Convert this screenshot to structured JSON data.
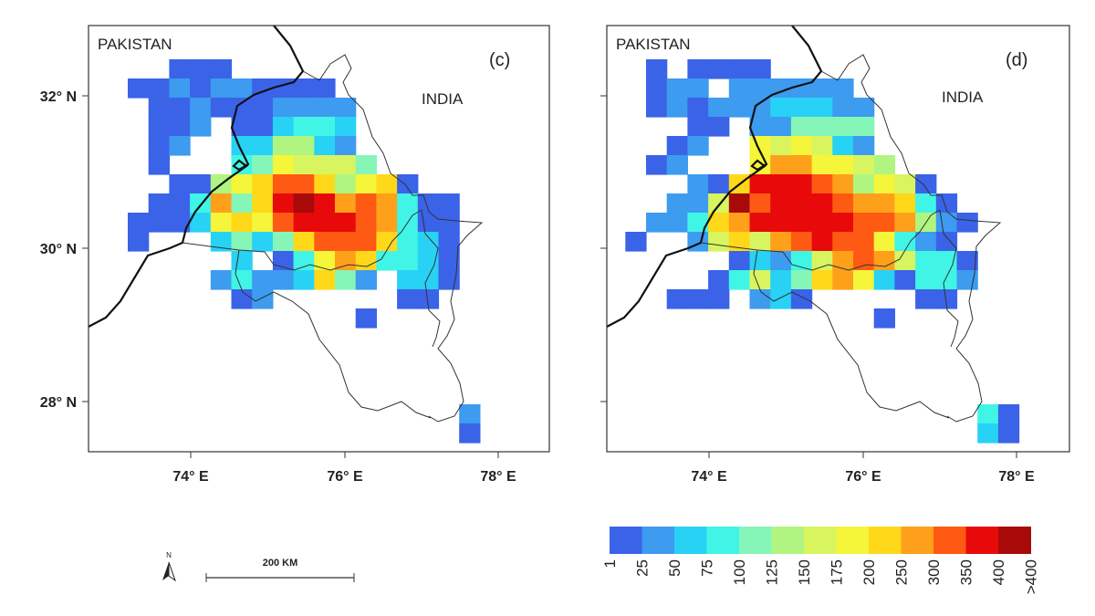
{
  "panels": [
    {
      "id": "c",
      "label": "(c)",
      "country_left": "PAKISTAN",
      "country_right": "INDIA",
      "grid_rows": [
        "...000............",
        ".0010110000.......",
        "..0010001111......",
        "..001.002332......",
        "..01..225521......",
        "..0...3476664.....",
        "...00578aa85780...",
        "..003948bcb9a9300.",
        ".0002787abbba9300.",
        ".0...24248aaa8320.",
        "......2.037983320.",
        ".....13112841.220.",
        "......01......00..",
        "............0.....",
        "",
        "",
        "",
        "",
        ".................1",
        ".................0"
      ]
    },
    {
      "id": "d",
      "label": "(d)",
      "country_left": "PAKISTAN",
      "country_right": "INDIA",
      "grid_rows": [
        ".0.0000...........",
        ".011.111111.......",
        ".01011122211......",
        "...00.114444......",
        "..01..767621......",
        ".01...7997765.....",
        "...108bbba95760...",
        "..116cabbba99830..",
        ".11389bbbbbaa9510.",
        "0..16869abaa7310.",
        ".....021369a96330.",
        "....0362489720331.",
        "..000.120.....00..",
        "............0.....",
        "",
        "",
        "",
        "",
        ".................30",
        ".................20"
      ]
    }
  ],
  "y_ticks": [
    "32° N",
    "30° N",
    "28° N"
  ],
  "x_ticks": [
    "74° E",
    "76° E",
    "78° E"
  ],
  "legend": {
    "labels": [
      "1",
      "25",
      "50",
      "75",
      "100",
      "125",
      "150",
      "175",
      "200",
      "250",
      "300",
      "350",
      "400",
      ">400"
    ],
    "colors": [
      "#3a63e8",
      "#3d9bf0",
      "#27d2f5",
      "#40f5e6",
      "#86f5b8",
      "#b0f580",
      "#d8f560",
      "#f5f53a",
      "#ffd81a",
      "#ffa01a",
      "#ff5a14",
      "#e80a0a",
      "#a80a0a"
    ]
  },
  "scale_bar": {
    "label": "200 KM"
  },
  "north_arrow": {
    "label": "N"
  }
}
